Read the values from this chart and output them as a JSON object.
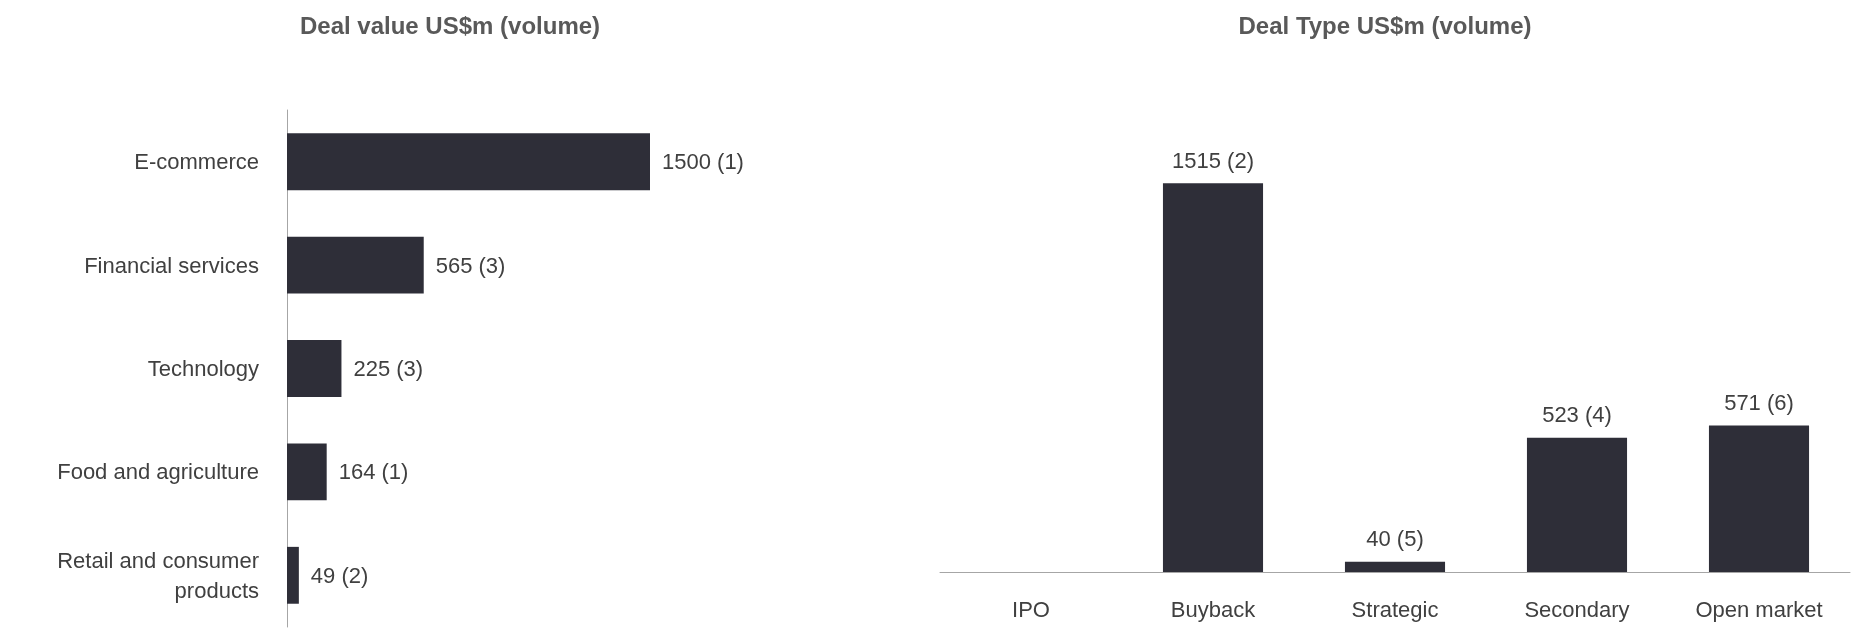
{
  "chart_data": [
    {
      "type": "bar",
      "title": "Deal value US$m (volume)",
      "orientation": "horizontal",
      "categories": [
        "E-commerce",
        "Financial services",
        "Technology",
        "Food and agriculture",
        "Retail and consumer\nproducts"
      ],
      "values": [
        1500,
        565,
        225,
        164,
        49
      ],
      "value_labels": [
        "1500 (1)",
        "565 (3)",
        "225 (3)",
        "164 (1)",
        "49 (2)"
      ],
      "color": "#2e2e38"
    },
    {
      "type": "bar",
      "title": "Deal Type US$m (volume)",
      "categories": [
        "IPO",
        "Buyback",
        "Strategic",
        "Secondary",
        "Open market"
      ],
      "values": [
        null,
        1515,
        40,
        523,
        571
      ],
      "value_labels": [
        null,
        "1515 (2)",
        "40 (5)",
        "523 (4)",
        "571 (6)"
      ],
      "color": "#2e2e38"
    }
  ]
}
